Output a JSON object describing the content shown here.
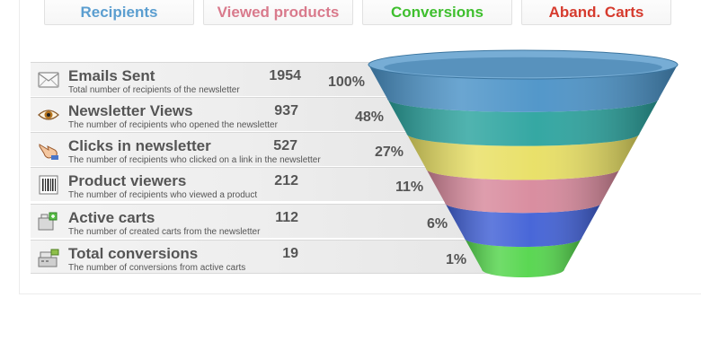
{
  "kpis": [
    {
      "label": "Recipients",
      "clipped": "— (—) —",
      "color": "#5b9ed0"
    },
    {
      "label": "Viewed products",
      "clipped": "— (—) —",
      "color": "#d97a8c"
    },
    {
      "label": "Conversions",
      "clipped": "— (—) —",
      "color": "#3fbf2e"
    },
    {
      "label": "Aband. Carts",
      "clipped": "— (—) —",
      "color": "#d63b2e"
    }
  ],
  "chart_data": {
    "type": "funnel",
    "stages": [
      {
        "name": "Emails Sent",
        "description": "Total number of recipients of the newsletter",
        "value": 1954,
        "percent": "100%",
        "icon": "envelope-icon",
        "color": "#4a92c7"
      },
      {
        "name": "Newsletter Views",
        "description": "The number of recipients who opened the newsletter",
        "value": 937,
        "percent": "48%",
        "icon": "eye-icon",
        "color": "#2aa39e"
      },
      {
        "name": "Clicks in newsletter",
        "description": "The number of recipients who clicked on a link in the newsletter",
        "value": 527,
        "percent": "27%",
        "icon": "pointing-hand-icon",
        "color": "#e8df62"
      },
      {
        "name": "Product viewers",
        "description": "The number of recipients who viewed a product",
        "value": 212,
        "percent": "11%",
        "icon": "barcode-icon",
        "color": "#d7889b"
      },
      {
        "name": "Active carts",
        "description": "The number of created carts from the newsletter",
        "value": 112,
        "percent": "6%",
        "icon": "cart-icon",
        "color": "#3f5fd6"
      },
      {
        "name": "Total conversions",
        "description": "The number of conversions from active carts",
        "value": 19,
        "percent": "1%",
        "icon": "cash-register-icon",
        "color": "#52d54a"
      }
    ]
  }
}
